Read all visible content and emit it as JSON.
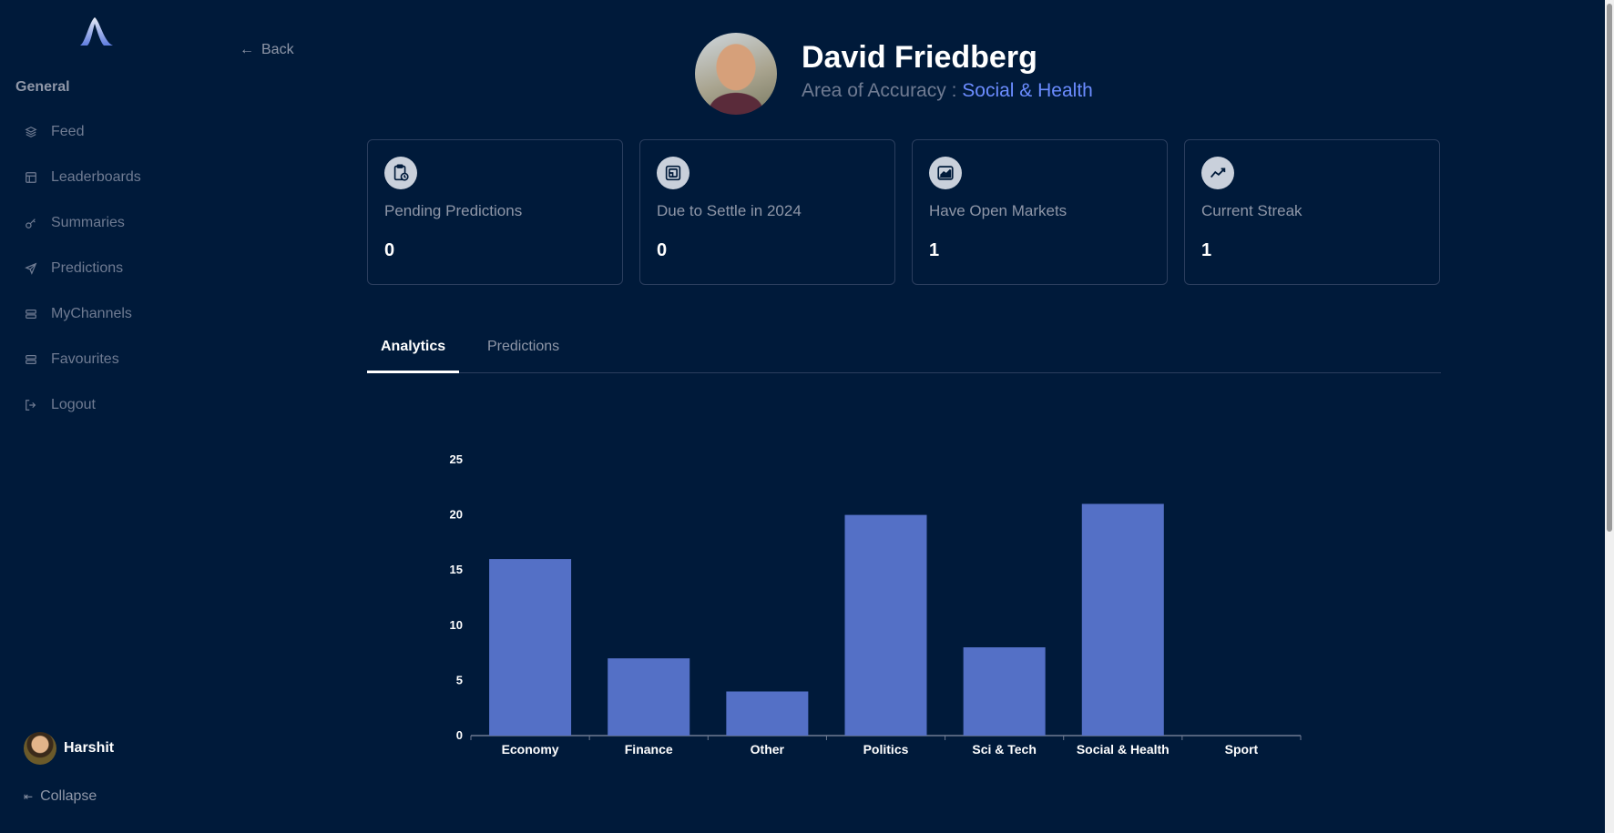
{
  "sidebar": {
    "section_title": "General",
    "items": [
      {
        "label": "Feed",
        "icon": "layers-icon"
      },
      {
        "label": "Leaderboards",
        "icon": "table-icon"
      },
      {
        "label": "Summaries",
        "icon": "key-icon"
      },
      {
        "label": "Predictions",
        "icon": "send-icon"
      },
      {
        "label": "MyChannels",
        "icon": "list-icon"
      },
      {
        "label": "Favourites",
        "icon": "list-icon"
      },
      {
        "label": "Logout",
        "icon": "logout-icon"
      }
    ],
    "user_name": "Harshit",
    "collapse_label": "Collapse"
  },
  "back_label": "Back",
  "profile": {
    "name": "David Friedberg",
    "accuracy_label": "Area of Accuracy :",
    "accuracy_value": "Social & Health"
  },
  "stats": [
    {
      "label": "Pending Predictions",
      "value": "0",
      "icon": "clipboard-clock-icon"
    },
    {
      "label": "Due to Settle in 2024",
      "value": "0",
      "icon": "calendar-frame-icon"
    },
    {
      "label": "Have Open Markets",
      "value": "1",
      "icon": "chart-area-icon"
    },
    {
      "label": "Current Streak",
      "value": "1",
      "icon": "trend-line-icon"
    }
  ],
  "tabs": [
    {
      "label": "Analytics",
      "active": true
    },
    {
      "label": "Predictions",
      "active": false
    }
  ],
  "colors": {
    "background": "#001a3a",
    "bar": "#5470c6",
    "accent": "#6b8cff"
  },
  "chart_data": {
    "type": "bar",
    "categories": [
      "Economy",
      "Finance",
      "Other",
      "Politics",
      "Sci & Tech",
      "Social & Health",
      "Sport"
    ],
    "values": [
      16,
      7,
      4,
      20,
      8,
      21,
      0
    ],
    "ylim": [
      0,
      25
    ],
    "yticks": [
      0,
      5,
      10,
      15,
      20,
      25
    ],
    "title": "",
    "xlabel": "",
    "ylabel": ""
  }
}
